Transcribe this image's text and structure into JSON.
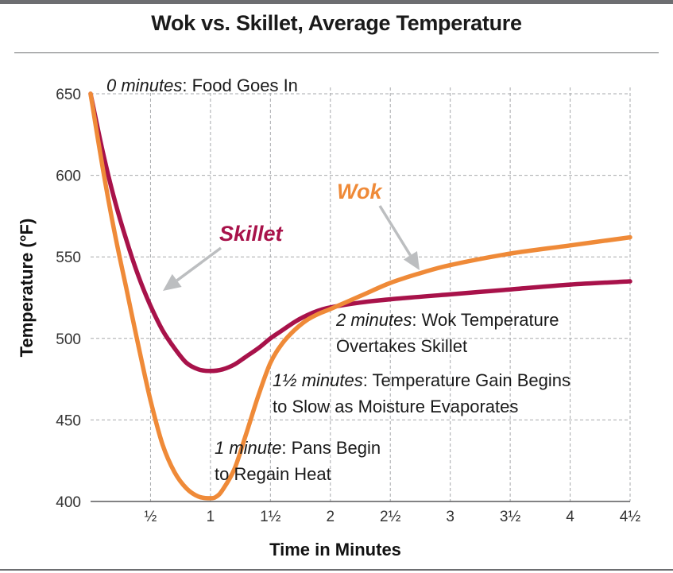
{
  "chart_data": {
    "type": "line",
    "title": "Wok vs. Skillet, Average Temperature",
    "xlabel": "Time in Minutes",
    "ylabel": "Temperature (°F)",
    "xlim": [
      0,
      4.5
    ],
    "ylim": [
      400,
      650
    ],
    "x_ticks": [
      {
        "value": 0.5,
        "label": "½"
      },
      {
        "value": 1,
        "label": "1"
      },
      {
        "value": 1.5,
        "label": "1½"
      },
      {
        "value": 2,
        "label": "2"
      },
      {
        "value": 2.5,
        "label": "2½"
      },
      {
        "value": 3,
        "label": "3"
      },
      {
        "value": 3.5,
        "label": "3½"
      },
      {
        "value": 4,
        "label": "4"
      },
      {
        "value": 4.5,
        "label": "4½"
      }
    ],
    "y_ticks": [
      400,
      450,
      500,
      550,
      600,
      650
    ],
    "grid": "dashed",
    "series": [
      {
        "name": "Skillet",
        "color": "#a8124a",
        "points": [
          [
            0,
            650
          ],
          [
            0.1,
            615
          ],
          [
            0.2,
            585
          ],
          [
            0.3,
            560
          ],
          [
            0.4,
            538
          ],
          [
            0.5,
            520
          ],
          [
            0.6,
            505
          ],
          [
            0.7,
            494
          ],
          [
            0.8,
            485
          ],
          [
            0.9,
            481
          ],
          [
            1.0,
            480
          ],
          [
            1.1,
            481
          ],
          [
            1.2,
            484
          ],
          [
            1.3,
            489
          ],
          [
            1.4,
            494
          ],
          [
            1.5,
            500
          ],
          [
            1.6,
            505
          ],
          [
            1.7,
            510
          ],
          [
            1.8,
            514
          ],
          [
            1.9,
            517
          ],
          [
            2.0,
            519
          ],
          [
            2.25,
            522
          ],
          [
            2.5,
            524
          ],
          [
            3.0,
            527
          ],
          [
            3.5,
            530
          ],
          [
            4.0,
            533
          ],
          [
            4.5,
            535
          ]
        ]
      },
      {
        "name": "Wok",
        "color": "#ef8a38",
        "points": [
          [
            0,
            650
          ],
          [
            0.1,
            605
          ],
          [
            0.2,
            565
          ],
          [
            0.3,
            530
          ],
          [
            0.4,
            495
          ],
          [
            0.5,
            462
          ],
          [
            0.6,
            435
          ],
          [
            0.7,
            418
          ],
          [
            0.8,
            408
          ],
          [
            0.9,
            403
          ],
          [
            1.0,
            402
          ],
          [
            1.05,
            403
          ],
          [
            1.1,
            407
          ],
          [
            1.2,
            420
          ],
          [
            1.3,
            442
          ],
          [
            1.4,
            465
          ],
          [
            1.5,
            485
          ],
          [
            1.6,
            497
          ],
          [
            1.7,
            505
          ],
          [
            1.8,
            511
          ],
          [
            1.9,
            515
          ],
          [
            2.0,
            518
          ],
          [
            2.25,
            526
          ],
          [
            2.5,
            534
          ],
          [
            2.75,
            540
          ],
          [
            3.0,
            545
          ],
          [
            3.5,
            552
          ],
          [
            4.0,
            557
          ],
          [
            4.5,
            562
          ]
        ]
      }
    ],
    "annotations": [
      {
        "italic": "0 minutes",
        "text": ": Food Goes In"
      },
      {
        "italic": "1 minute",
        "text": ": Pans Begin",
        "line2": "to Regain Heat"
      },
      {
        "italic": "1½ minutes",
        "text": ": Temperature Gain Begins",
        "line2": "to Slow as Moisture Evaporates"
      },
      {
        "italic": "2 minutes",
        "text": ": Wok Temperature",
        "line2": "Overtakes Skillet"
      }
    ],
    "arrow_color": "#bcbec0"
  }
}
